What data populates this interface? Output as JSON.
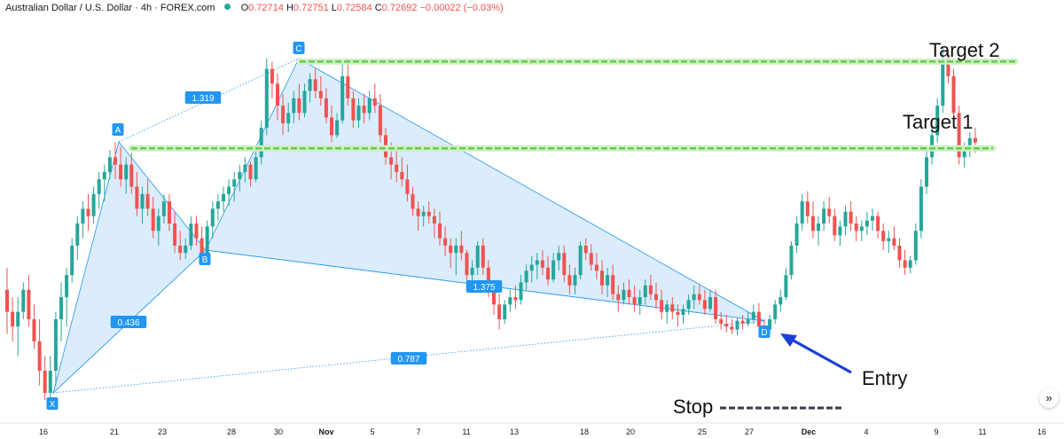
{
  "header": {
    "symbol": "Australian Dollar / U.S. Dollar · 4h · FOREX.com",
    "open_label": "O",
    "open": "0.72714",
    "high_label": "H",
    "high": "0.72751",
    "low_label": "L",
    "low": "0.72584",
    "close_label": "C",
    "close": "0.72692",
    "change": "−0.00022 (−0.03%)"
  },
  "colors": {
    "up": "#26a69a",
    "down": "#ef5350",
    "pattern_fill": "#cfe6fb",
    "pattern_line": "#2196f3",
    "target_line": "#66cc4d",
    "arrow": "#1a3fd6",
    "stop_dash": "#3a3a4a"
  },
  "nav_button": {
    "icon": "double-chevron-right-icon",
    "glyph": "»"
  },
  "chart_data": {
    "type": "candlestick-harmonic-pattern",
    "x_tick_labels": [
      "16",
      "21",
      "23",
      "28",
      "30",
      "Nov",
      "5",
      "7",
      "11",
      "13",
      "18",
      "20",
      "25",
      "27",
      "Dec",
      "4",
      "9",
      "11",
      "16"
    ],
    "pattern_points": [
      {
        "label": "X",
        "price": 0.6995
      },
      {
        "label": "A",
        "price": 0.7162
      },
      {
        "label": "B",
        "price": 0.7089
      },
      {
        "label": "C",
        "price": 0.7222
      },
      {
        "label": "D",
        "price": 0.704
      }
    ],
    "ratios": [
      {
        "label": "1.319",
        "between": "A-C"
      },
      {
        "label": "0.436",
        "between": "X-B"
      },
      {
        "label": "1.375",
        "between": "B-D"
      },
      {
        "label": "0.787",
        "between": "X-D"
      }
    ],
    "levels": [
      {
        "label": "Target 2",
        "price": 0.722
      },
      {
        "label": "Target 1",
        "price": 0.7161
      }
    ],
    "annotations": [
      {
        "label": "Entry",
        "points_to": "D"
      },
      {
        "label": "Stop"
      }
    ],
    "candles": [
      [
        0.7065,
        0.708,
        0.7035,
        0.705
      ],
      [
        0.705,
        0.706,
        0.703,
        0.704
      ],
      [
        0.704,
        0.706,
        0.702,
        0.705
      ],
      [
        0.705,
        0.707,
        0.7045,
        0.7065
      ],
      [
        0.7065,
        0.7075,
        0.704,
        0.7045
      ],
      [
        0.7045,
        0.7055,
        0.7025,
        0.703
      ],
      [
        0.703,
        0.7045,
        0.7,
        0.701
      ],
      [
        0.701,
        0.702,
        0.699,
        0.6995
      ],
      [
        0.6995,
        0.702,
        0.6985,
        0.701
      ],
      [
        0.701,
        0.705,
        0.7,
        0.7045
      ],
      [
        0.7045,
        0.707,
        0.703,
        0.706
      ],
      [
        0.706,
        0.708,
        0.704,
        0.7075
      ],
      [
        0.7075,
        0.71,
        0.707,
        0.7095
      ],
      [
        0.7095,
        0.7115,
        0.7085,
        0.711
      ],
      [
        0.711,
        0.7125,
        0.71,
        0.712
      ],
      [
        0.712,
        0.713,
        0.7105,
        0.7115
      ],
      [
        0.7115,
        0.7135,
        0.711,
        0.713
      ],
      [
        0.713,
        0.7145,
        0.712,
        0.714
      ],
      [
        0.714,
        0.715,
        0.7125,
        0.7145
      ],
      [
        0.7145,
        0.716,
        0.714,
        0.7155
      ],
      [
        0.7155,
        0.7165,
        0.714,
        0.715
      ],
      [
        0.715,
        0.7162,
        0.7135,
        0.714
      ],
      [
        0.714,
        0.7155,
        0.713,
        0.715
      ],
      [
        0.715,
        0.7158,
        0.713,
        0.7135
      ],
      [
        0.7135,
        0.7145,
        0.7115,
        0.712
      ],
      [
        0.712,
        0.7135,
        0.711,
        0.713
      ],
      [
        0.713,
        0.714,
        0.7115,
        0.712
      ],
      [
        0.712,
        0.7128,
        0.71,
        0.7105
      ],
      [
        0.7105,
        0.712,
        0.7095,
        0.7115
      ],
      [
        0.7115,
        0.713,
        0.711,
        0.7125
      ],
      [
        0.7125,
        0.713,
        0.7105,
        0.711
      ],
      [
        0.711,
        0.7118,
        0.709,
        0.7095
      ],
      [
        0.7095,
        0.7105,
        0.7085,
        0.709
      ],
      [
        0.709,
        0.71,
        0.7086,
        0.7095
      ],
      [
        0.7095,
        0.7115,
        0.7092,
        0.711
      ],
      [
        0.711,
        0.7115,
        0.7095,
        0.71
      ],
      [
        0.71,
        0.7108,
        0.7085,
        0.709
      ],
      [
        0.709,
        0.7112,
        0.7088,
        0.7108
      ],
      [
        0.7108,
        0.7125,
        0.71,
        0.712
      ],
      [
        0.712,
        0.713,
        0.7112,
        0.7125
      ],
      [
        0.7125,
        0.7135,
        0.7118,
        0.713
      ],
      [
        0.713,
        0.714,
        0.7122,
        0.7135
      ],
      [
        0.7135,
        0.7145,
        0.7125,
        0.714
      ],
      [
        0.714,
        0.715,
        0.7132,
        0.7145
      ],
      [
        0.7145,
        0.7155,
        0.7138,
        0.715
      ],
      [
        0.715,
        0.7152,
        0.7135,
        0.714
      ],
      [
        0.714,
        0.716,
        0.7138,
        0.7155
      ],
      [
        0.7155,
        0.718,
        0.715,
        0.7175
      ],
      [
        0.7175,
        0.7222,
        0.717,
        0.7215
      ],
      [
        0.7215,
        0.722,
        0.7195,
        0.7205
      ],
      [
        0.7205,
        0.7212,
        0.718,
        0.719
      ],
      [
        0.719,
        0.7198,
        0.717,
        0.7178
      ],
      [
        0.7178,
        0.7192,
        0.7172,
        0.7185
      ],
      [
        0.7185,
        0.72,
        0.7178,
        0.7195
      ],
      [
        0.7195,
        0.7205,
        0.718,
        0.7185
      ],
      [
        0.7185,
        0.7205,
        0.7182,
        0.72
      ],
      [
        0.72,
        0.7212,
        0.7192,
        0.7208
      ],
      [
        0.7208,
        0.7215,
        0.7195,
        0.72
      ],
      [
        0.72,
        0.721,
        0.719,
        0.7195
      ],
      [
        0.7195,
        0.7202,
        0.7178,
        0.7182
      ],
      [
        0.7182,
        0.719,
        0.7165,
        0.717
      ],
      [
        0.717,
        0.7185,
        0.7168,
        0.718
      ],
      [
        0.718,
        0.7222,
        0.7178,
        0.721
      ],
      [
        0.721,
        0.722,
        0.719,
        0.7195
      ],
      [
        0.7195,
        0.72,
        0.7175,
        0.718
      ],
      [
        0.718,
        0.7195,
        0.7175,
        0.719
      ],
      [
        0.719,
        0.7198,
        0.7178,
        0.7185
      ],
      [
        0.7185,
        0.72,
        0.718,
        0.7195
      ],
      [
        0.7195,
        0.7205,
        0.7185,
        0.719
      ],
      [
        0.719,
        0.7198,
        0.7165,
        0.717
      ],
      [
        0.717,
        0.7175,
        0.715,
        0.7155
      ],
      [
        0.7155,
        0.7165,
        0.714,
        0.715
      ],
      [
        0.715,
        0.716,
        0.7138,
        0.7145
      ],
      [
        0.7145,
        0.7155,
        0.7135,
        0.714
      ],
      [
        0.714,
        0.715,
        0.7125,
        0.713
      ],
      [
        0.713,
        0.7135,
        0.7115,
        0.712
      ],
      [
        0.712,
        0.7125,
        0.7105,
        0.7115
      ],
      [
        0.7115,
        0.7122,
        0.7108,
        0.7118
      ],
      [
        0.7118,
        0.7125,
        0.711,
        0.7115
      ],
      [
        0.7115,
        0.712,
        0.71,
        0.711
      ],
      [
        0.711,
        0.7118,
        0.7095,
        0.71
      ],
      [
        0.71,
        0.7108,
        0.7088,
        0.7095
      ],
      [
        0.7095,
        0.71,
        0.708,
        0.709
      ],
      [
        0.709,
        0.71,
        0.7075,
        0.7095
      ],
      [
        0.7095,
        0.7105,
        0.7085,
        0.709
      ],
      [
        0.709,
        0.7092,
        0.707,
        0.7075
      ],
      [
        0.7075,
        0.7085,
        0.7065,
        0.708
      ],
      [
        0.708,
        0.7098,
        0.7075,
        0.7095
      ],
      [
        0.7095,
        0.71,
        0.7075,
        0.708
      ],
      [
        0.708,
        0.7085,
        0.706,
        0.7065
      ],
      [
        0.7065,
        0.707,
        0.7048,
        0.7055
      ],
      [
        0.7055,
        0.7062,
        0.7038,
        0.7045
      ],
      [
        0.7045,
        0.7058,
        0.7042,
        0.7055
      ],
      [
        0.7055,
        0.7065,
        0.705,
        0.706
      ],
      [
        0.706,
        0.7068,
        0.7052,
        0.7058
      ],
      [
        0.7058,
        0.7075,
        0.7055,
        0.707
      ],
      [
        0.707,
        0.7082,
        0.7065,
        0.7078
      ],
      [
        0.7078,
        0.7088,
        0.707,
        0.7082
      ],
      [
        0.7082,
        0.709,
        0.7072,
        0.7085
      ],
      [
        0.7085,
        0.7092,
        0.7075,
        0.708
      ],
      [
        0.708,
        0.7088,
        0.7068,
        0.7072
      ],
      [
        0.7072,
        0.709,
        0.707,
        0.7085
      ],
      [
        0.7085,
        0.7095,
        0.7078,
        0.709
      ],
      [
        0.709,
        0.7095,
        0.707,
        0.7075
      ],
      [
        0.7075,
        0.7082,
        0.7062,
        0.7068
      ],
      [
        0.7068,
        0.708,
        0.7062,
        0.7075
      ],
      [
        0.7075,
        0.7098,
        0.7072,
        0.7095
      ],
      [
        0.7095,
        0.71,
        0.7085,
        0.709
      ],
      [
        0.709,
        0.7096,
        0.7078,
        0.7082
      ],
      [
        0.7082,
        0.709,
        0.7072,
        0.7078
      ],
      [
        0.7078,
        0.7085,
        0.7062,
        0.7068
      ],
      [
        0.7068,
        0.708,
        0.706,
        0.7075
      ],
      [
        0.7075,
        0.7082,
        0.7058,
        0.7062
      ],
      [
        0.7062,
        0.7068,
        0.705,
        0.7058
      ],
      [
        0.7058,
        0.707,
        0.7055,
        0.7065
      ],
      [
        0.7065,
        0.7072,
        0.7055,
        0.706
      ],
      [
        0.706,
        0.7068,
        0.705,
        0.7055
      ],
      [
        0.7055,
        0.7065,
        0.7048,
        0.706
      ],
      [
        0.706,
        0.7072,
        0.7055,
        0.7068
      ],
      [
        0.7068,
        0.7075,
        0.7058,
        0.7062
      ],
      [
        0.7062,
        0.707,
        0.7052,
        0.7058
      ],
      [
        0.7058,
        0.7065,
        0.7045,
        0.705
      ],
      [
        0.705,
        0.7058,
        0.7042,
        0.7055
      ],
      [
        0.7055,
        0.706,
        0.7045,
        0.705
      ],
      [
        0.705,
        0.7055,
        0.704,
        0.7048
      ],
      [
        0.7048,
        0.7055,
        0.7042,
        0.7052
      ],
      [
        0.7052,
        0.7062,
        0.7048,
        0.7058
      ],
      [
        0.7058,
        0.7068,
        0.7052,
        0.7062
      ],
      [
        0.7062,
        0.7068,
        0.7055,
        0.7058
      ],
      [
        0.7058,
        0.7065,
        0.7048,
        0.7052
      ],
      [
        0.7052,
        0.7065,
        0.705,
        0.706
      ],
      [
        0.706,
        0.7065,
        0.7042,
        0.7045
      ],
      [
        0.7045,
        0.705,
        0.7038,
        0.7042
      ],
      [
        0.7042,
        0.7048,
        0.7036,
        0.704
      ],
      [
        0.704,
        0.7045,
        0.7035,
        0.7038
      ],
      [
        0.7038,
        0.7046,
        0.7034,
        0.7044
      ],
      [
        0.7044,
        0.7048,
        0.7038,
        0.7042
      ],
      [
        0.7042,
        0.705,
        0.704,
        0.7045
      ],
      [
        0.7045,
        0.7055,
        0.7042,
        0.705
      ],
      [
        0.705,
        0.7056,
        0.7036,
        0.704
      ],
      [
        0.704,
        0.7045,
        0.7032,
        0.7038
      ],
      [
        0.7038,
        0.7048,
        0.7035,
        0.7045
      ],
      [
        0.7045,
        0.7058,
        0.7042,
        0.7055
      ],
      [
        0.7055,
        0.7065,
        0.705,
        0.706
      ],
      [
        0.706,
        0.708,
        0.7058,
        0.7075
      ],
      [
        0.7075,
        0.7098,
        0.7072,
        0.7095
      ],
      [
        0.7095,
        0.7115,
        0.709,
        0.711
      ],
      [
        0.711,
        0.713,
        0.7105,
        0.7125
      ],
      [
        0.7125,
        0.7132,
        0.711,
        0.7115
      ],
      [
        0.7115,
        0.7125,
        0.71,
        0.7105
      ],
      [
        0.7105,
        0.7115,
        0.7095,
        0.711
      ],
      [
        0.711,
        0.7125,
        0.7105,
        0.712
      ],
      [
        0.712,
        0.7128,
        0.711,
        0.7115
      ],
      [
        0.7115,
        0.712,
        0.7098,
        0.7102
      ],
      [
        0.7102,
        0.7112,
        0.7095,
        0.7108
      ],
      [
        0.7108,
        0.7122,
        0.7102,
        0.7118
      ],
      [
        0.7118,
        0.7125,
        0.7105,
        0.711
      ],
      [
        0.711,
        0.7115,
        0.7098,
        0.7105
      ],
      [
        0.7105,
        0.7112,
        0.7098,
        0.7108
      ],
      [
        0.7108,
        0.7118,
        0.7102,
        0.7112
      ],
      [
        0.7112,
        0.712,
        0.7105,
        0.7115
      ],
      [
        0.7115,
        0.7118,
        0.71,
        0.7105
      ],
      [
        0.7105,
        0.711,
        0.7092,
        0.7098
      ],
      [
        0.7098,
        0.7105,
        0.709,
        0.71
      ],
      [
        0.71,
        0.7108,
        0.7092,
        0.7095
      ],
      [
        0.7095,
        0.71,
        0.708,
        0.7085
      ],
      [
        0.7085,
        0.7092,
        0.7075,
        0.708
      ],
      [
        0.708,
        0.7088,
        0.7076,
        0.7085
      ],
      [
        0.7085,
        0.711,
        0.7082,
        0.7105
      ],
      [
        0.7105,
        0.714,
        0.71,
        0.7135
      ],
      [
        0.7135,
        0.716,
        0.713,
        0.7155
      ],
      [
        0.7155,
        0.7175,
        0.715,
        0.717
      ],
      [
        0.717,
        0.7195,
        0.7165,
        0.719
      ],
      [
        0.719,
        0.723,
        0.7185,
        0.7222
      ],
      [
        0.7222,
        0.7228,
        0.7205,
        0.721
      ],
      [
        0.721,
        0.7215,
        0.718,
        0.7185
      ],
      [
        0.7185,
        0.719,
        0.715,
        0.7155
      ],
      [
        0.7155,
        0.7165,
        0.7148,
        0.716
      ],
      [
        0.716,
        0.7172,
        0.7155,
        0.7168
      ],
      [
        0.7168,
        0.7175,
        0.7158,
        0.7165
      ]
    ]
  }
}
